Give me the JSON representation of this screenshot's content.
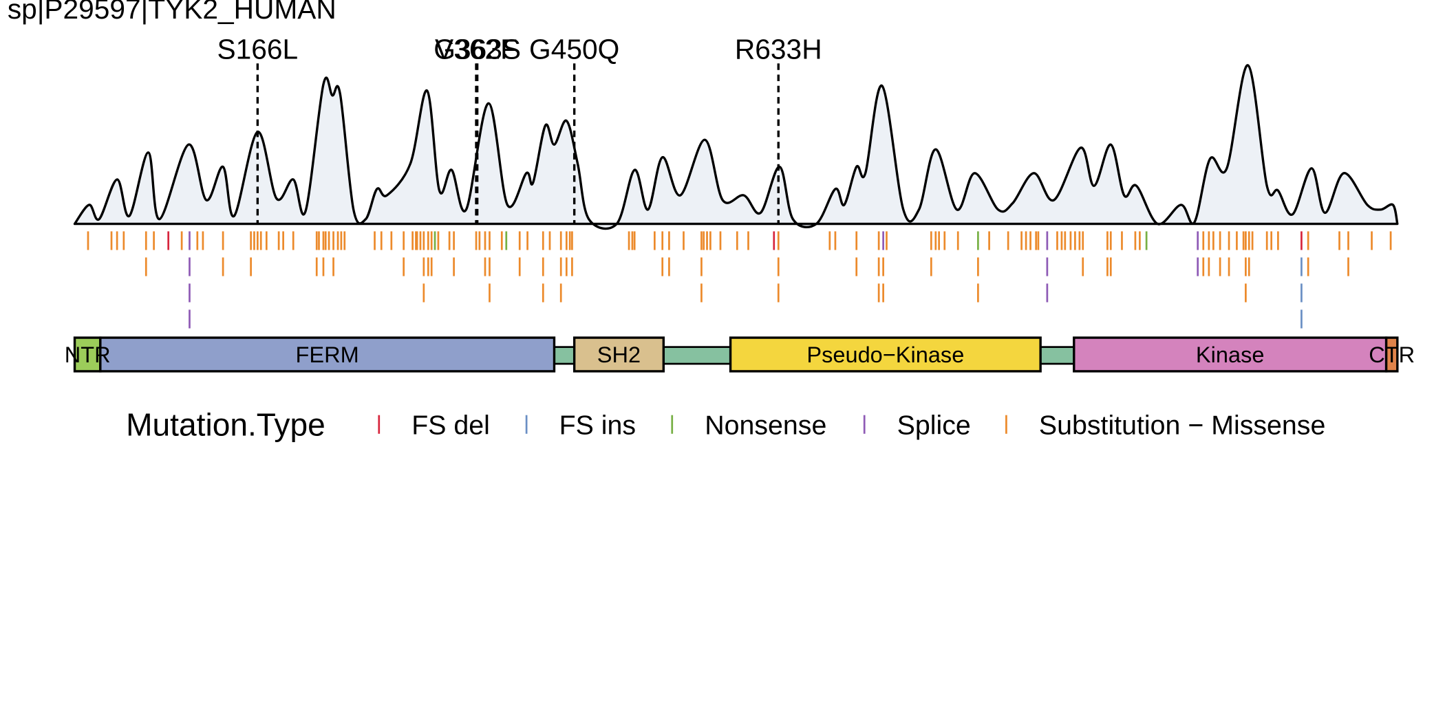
{
  "chart_data": {
    "type": "mutation-map",
    "title": "sp|P29597|TYK2_HUMAN",
    "xlim": [
      1,
      1187
    ],
    "ylim": [
      0,
      100
    ],
    "density": {
      "color": "#edf1f6",
      "x": [
        1,
        14,
        23,
        39,
        50,
        67,
        77,
        103,
        119,
        134,
        144,
        165,
        182,
        197,
        208,
        224,
        232,
        239,
        251,
        262,
        272,
        281,
        302,
        317,
        328,
        339,
        352,
        372,
        389,
        406,
        412,
        423,
        431,
        442,
        452,
        462,
        487,
        503,
        515,
        528,
        544,
        566,
        582,
        601,
        616,
        633,
        645,
        666,
        683,
        691,
        702,
        710,
        725,
        744,
        758,
        773,
        792,
        808,
        829,
        842,
        861,
        879,
        903,
        915,
        930,
        942,
        953,
        972,
        993,
        1005,
        1019,
        1034,
        1053,
        1070,
        1080,
        1093,
        1110,
        1122,
        1139,
        1160,
        1172,
        1183,
        1187
      ],
      "values": [
        0,
        12,
        3,
        28,
        5,
        45,
        3,
        50,
        15,
        36,
        5,
        58,
        16,
        28,
        8,
        88,
        81,
        82,
        9,
        3,
        22,
        18,
        38,
        84,
        21,
        34,
        9,
        76,
        12,
        32,
        26,
        62,
        50,
        65,
        38,
        3,
        0,
        34,
        9,
        42,
        18,
        53,
        15,
        18,
        7,
        36,
        3,
        0,
        22,
        12,
        36,
        32,
        87,
        9,
        9,
        47,
        9,
        32,
        9,
        13,
        32,
        15,
        48,
        24,
        50,
        18,
        24,
        0,
        12,
        1,
        41,
        35,
        100,
        24,
        21,
        6,
        35,
        7,
        32,
        12,
        9,
        12,
        0
      ]
    },
    "hotspots": [
      {
        "label": "S166L",
        "position": 165
      },
      {
        "label": "V362F",
        "position": 361
      },
      {
        "label": "G363S",
        "position": 362
      },
      {
        "label": "G450Q",
        "position": 449
      },
      {
        "label": "R633H",
        "position": 632
      }
    ],
    "legend_title": "Mutation.Type",
    "series": [
      {
        "name": "FS del",
        "color": "#d7263d",
        "positions": [
          85,
          628,
          1101
        ]
      },
      {
        "name": "FS ins",
        "color": "#6a8fc4",
        "positions": [
          1101,
          1101,
          1101
        ]
      },
      {
        "name": "Nonsense",
        "color": "#77b045",
        "positions": [
          324,
          388,
          811,
          962
        ]
      },
      {
        "name": "Splice",
        "color": "#8e5ab5",
        "positions": [
          104,
          104,
          104,
          104,
          726,
          873,
          873,
          873,
          1008,
          1008
        ]
      },
      {
        "name": "Substitution − Missense",
        "color": "#ec8a2b",
        "positions": [
          13,
          34,
          39,
          45,
          65,
          72,
          97,
          111,
          116,
          134,
          159,
          162,
          165,
          168,
          173,
          184,
          188,
          197,
          218,
          220,
          224,
          226,
          229,
          233,
          237,
          240,
          243,
          270,
          276,
          285,
          296,
          304,
          307,
          308,
          311,
          314,
          318,
          321,
          327,
          337,
          341,
          361,
          364,
          369,
          373,
          384,
          400,
          407,
          421,
          427,
          437,
          442,
          445,
          447,
          498,
          501,
          503,
          521,
          528,
          534,
          547,
          563,
          565,
          568,
          571,
          580,
          595,
          605,
          632,
          678,
          683,
          702,
          722,
          729,
          769,
          773,
          776,
          781,
          793,
          821,
          838,
          850,
          854,
          858,
          863,
          865,
          882,
          886,
          889,
          894,
          898,
          902,
          905,
          927,
          930,
          940,
          952,
          956,
          1013,
          1018,
          1022,
          1028,
          1036,
          1043,
          1049,
          1051,
          1054,
          1057,
          1070,
          1074,
          1080,
          1107,
          1135,
          1143,
          1164,
          1181,
          65,
          134,
          159,
          218,
          224,
          233,
          296,
          314,
          318,
          321,
          341,
          369,
          373,
          400,
          421,
          437,
          442,
          447,
          528,
          534,
          563,
          632,
          702,
          722,
          726,
          769,
          811,
          905,
          927,
          930,
          1013,
          1018,
          1028,
          1036,
          1051,
          1054,
          1107,
          1143,
          314,
          373,
          421,
          437,
          563,
          632,
          722,
          726,
          811,
          1051
        ]
      }
    ],
    "backbone_color": "#86c1a0",
    "domains": [
      {
        "name": "NTR",
        "start": 1,
        "end": 24,
        "color": "#9ccc5a"
      },
      {
        "name": "FERM",
        "start": 24,
        "end": 431,
        "color": "#8f9fcb"
      },
      {
        "name": "SH2",
        "start": 449,
        "end": 529,
        "color": "#d9c08e"
      },
      {
        "name": "Pseudo−Kinase",
        "start": 589,
        "end": 867,
        "color": "#f4d63e"
      },
      {
        "name": "Kinase",
        "start": 897,
        "end": 1177,
        "color": "#d483bd"
      },
      {
        "name": "CTR",
        "start": 1177,
        "end": 1187,
        "color": "#e0834a"
      }
    ]
  }
}
